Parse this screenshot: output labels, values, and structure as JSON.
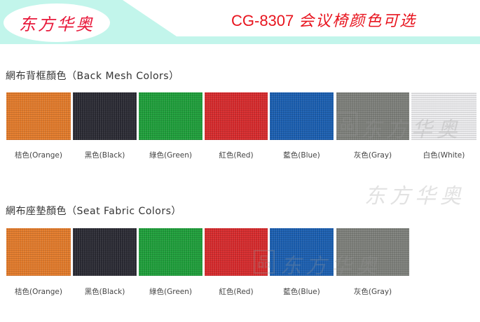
{
  "header": {
    "logo_text": "东方华奥",
    "model": "CG-8307",
    "title_cn": "会议椅颜色可选",
    "accent_color": "#e8141e",
    "band_color": "#c2f5eb"
  },
  "sections": [
    {
      "title": "網布背框顏色（Back Mesh Colors）",
      "swatches": [
        {
          "label": "桔色(Orange)",
          "color": "#e27a2a"
        },
        {
          "label": "黑色(Black)",
          "color": "#2a2a33"
        },
        {
          "label": "綠色(Green)",
          "color": "#1e9e3a"
        },
        {
          "label": "紅色(Red)",
          "color": "#d62a2c"
        },
        {
          "label": "藍色(Blue)",
          "color": "#1a5eb0"
        },
        {
          "label": "灰色(Gray)",
          "color": "#7d7f7a"
        },
        {
          "label": "白色(White)",
          "color": "#ececee"
        }
      ]
    },
    {
      "title": "網布座墊顏色（Seat Fabric Colors）",
      "swatches": [
        {
          "label": "桔色(Orange)",
          "color": "#e27a2a"
        },
        {
          "label": "黑色(Black)",
          "color": "#2a2a33"
        },
        {
          "label": "綠色(Green)",
          "color": "#1e9e3a"
        },
        {
          "label": "紅色(Red)",
          "color": "#d62a2c"
        },
        {
          "label": "藍色(Blue)",
          "color": "#1a5eb0"
        },
        {
          "label": "灰色(Gray)",
          "color": "#7d7f7a"
        }
      ]
    }
  ],
  "watermark": "东方华奥"
}
